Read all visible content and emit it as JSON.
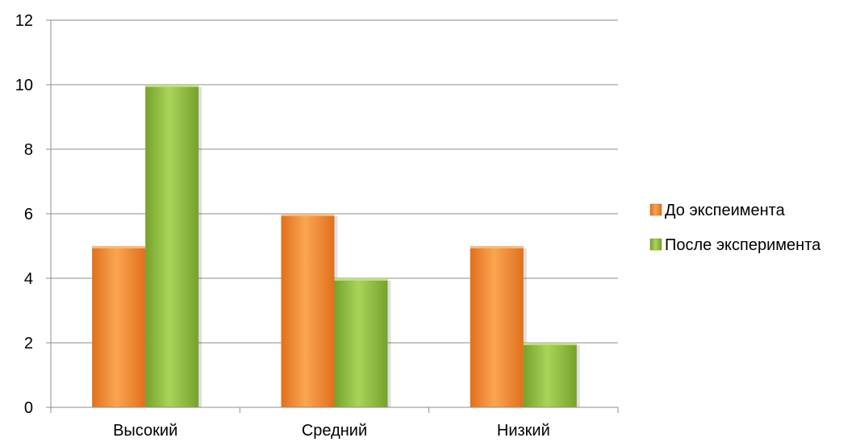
{
  "chart_data": {
    "type": "bar",
    "title": "",
    "xlabel": "",
    "ylabel": "",
    "categories": [
      "Высокий",
      "Средний",
      "Низкий"
    ],
    "series": [
      {
        "name": "До экспеимента",
        "values": [
          5,
          6,
          5
        ],
        "color": "#f79232"
      },
      {
        "name": "После эксперимента",
        "values": [
          10,
          4,
          2
        ],
        "color": "#92c140"
      }
    ],
    "ylim": [
      0,
      12
    ],
    "yticks": [
      "0",
      "2",
      "4",
      "6",
      "8",
      "10",
      "12"
    ],
    "grid": true,
    "legend_position": "right"
  }
}
